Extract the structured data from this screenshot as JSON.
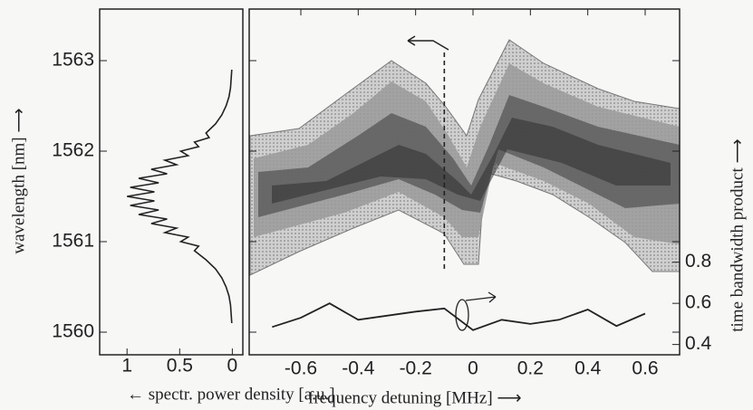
{
  "chart_data": [
    {
      "type": "line",
      "xlabel": "← spectr. power density [a.u.]",
      "ylabel": "wavelength [nm] ⟶",
      "xlim": [
        1.26,
        -0.1
      ],
      "ylim": [
        1559.75,
        1563.57
      ],
      "xticks": [
        1,
        0.5,
        0
      ],
      "yticks": [
        1560,
        1561,
        1562,
        1563
      ],
      "color": "#222",
      "y": [
        1560.1,
        1560.3,
        1560.4,
        1560.5,
        1560.6,
        1560.7,
        1560.8,
        1560.9,
        1560.95,
        1561.0,
        1561.05,
        1561.1,
        1561.15,
        1561.2,
        1561.25,
        1561.3,
        1561.35,
        1561.4,
        1561.45,
        1561.5,
        1561.55,
        1561.6,
        1561.65,
        1561.7,
        1561.75,
        1561.8,
        1561.85,
        1561.9,
        1561.95,
        1562.0,
        1562.05,
        1562.1,
        1562.15,
        1562.2,
        1562.3,
        1562.4,
        1562.5,
        1562.6,
        1562.7,
        1562.9
      ],
      "values": [
        0.005,
        0.017,
        0.032,
        0.059,
        0.1,
        0.16,
        0.25,
        0.36,
        0.32,
        0.49,
        0.42,
        0.64,
        0.53,
        0.77,
        0.62,
        0.89,
        0.7,
        0.97,
        0.74,
        1.0,
        0.74,
        0.97,
        0.7,
        0.89,
        0.62,
        0.77,
        0.53,
        0.64,
        0.42,
        0.49,
        0.32,
        0.36,
        0.22,
        0.25,
        0.16,
        0.1,
        0.059,
        0.032,
        0.017,
        0.005
      ]
    },
    {
      "type": "spectrogram",
      "xlabel": "frequency detuning [MHz] ⟶",
      "y2label": "time bandwidth product ⟶",
      "xlim": [
        -0.78,
        0.72
      ],
      "ylim": [
        1559.75,
        1563.57
      ],
      "y2lim": [
        0.35,
        2.03
      ],
      "xticks": [
        -0.6,
        -0.4,
        -0.2,
        0,
        0.2,
        0.4,
        0.6
      ],
      "yticks": [
        1560,
        1561,
        1562,
        1563
      ],
      "y2ticks": [
        0.4,
        0.6,
        0.8
      ],
      "marker_x": -0.1,
      "series": [
        {
          "axis": "y2",
          "color": "#222",
          "x": [
            -0.7,
            -0.6,
            -0.5,
            -0.4,
            -0.3,
            -0.2,
            -0.1,
            0,
            0.1,
            0.2,
            0.3,
            0.4,
            0.5,
            0.6
          ],
          "values": [
            0.485,
            0.53,
            0.6,
            0.52,
            0.54,
            0.56,
            0.575,
            0.47,
            0.52,
            0.5,
            0.52,
            0.57,
            0.49,
            0.55
          ]
        }
      ]
    }
  ]
}
